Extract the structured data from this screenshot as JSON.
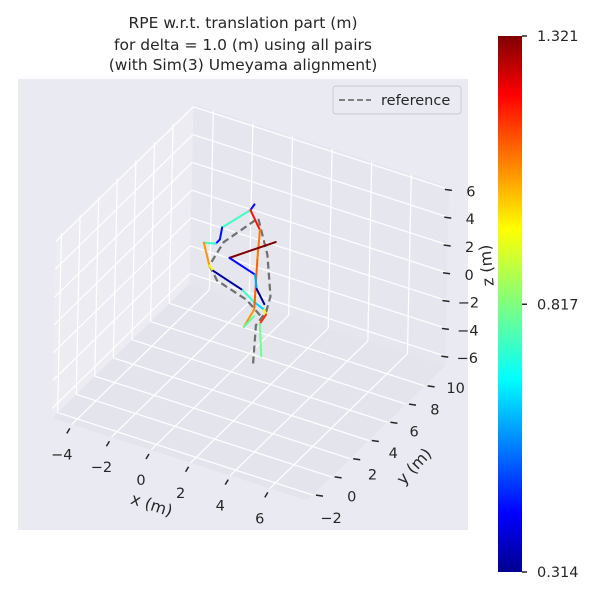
{
  "chart_data": {
    "type": "line3d",
    "title_lines": [
      "RPE w.r.t. translation part (m)",
      "for delta = 1.0 (m) using all pairs",
      "(with Sim(3) Umeyama alignment)"
    ],
    "xlabel": "x (m)",
    "ylabel": "y (m)",
    "zlabel": "z (m)",
    "xlim": [
      -5.0,
      7.9
    ],
    "ylim": [
      -2.6,
      12.2
    ],
    "zlim": [
      -6.7,
      6.2
    ],
    "xticks": [
      -4,
      -2,
      0,
      2,
      4,
      6
    ],
    "yticks": [
      -2,
      0,
      2,
      4,
      6,
      8,
      10
    ],
    "zticks": [
      -6,
      -4,
      -2,
      0,
      2,
      4,
      6
    ],
    "xtick_labels": [
      "−4",
      "−2",
      "0",
      "2",
      "4",
      "6"
    ],
    "ytick_labels": [
      "−2",
      "0",
      "2",
      "4",
      "6",
      "8",
      "10"
    ],
    "ztick_labels": [
      "−6",
      "−4",
      "−2",
      "0",
      "2",
      "4",
      "6"
    ],
    "grid": true,
    "legend": {
      "position": "top-right",
      "entries": [
        {
          "name": "reference",
          "style": "dashed",
          "color": "#808080"
        }
      ]
    },
    "reference": {
      "name": "reference",
      "color": "#707070",
      "points": [
        [
          1.1,
          6,
          -5.6
        ],
        [
          1.2,
          6,
          -2.8
        ],
        [
          1.7,
          6,
          -1.6
        ],
        [
          1.9,
          6,
          -0.4
        ],
        [
          1.7,
          6,
          2.5
        ],
        [
          1.2,
          6,
          4.9
        ],
        [
          -0.5,
          6,
          2.4
        ],
        [
          -1.2,
          6,
          0.4
        ],
        [
          -0.8,
          6,
          -0.5
        ],
        [
          0.7,
          6,
          -1.2
        ],
        [
          1.4,
          6,
          -2.0
        ]
      ]
    },
    "trajectory": [
      {
        "points": [
          [
            1.0,
            6,
            5.8
          ],
          [
            0.8,
            6,
            5.3
          ],
          [
            -0.6,
            6,
            3.4
          ],
          [
            -0.7,
            6,
            2.5
          ],
          [
            -0.9,
            6,
            2.1
          ],
          [
            -1.5,
            6,
            1.9
          ],
          [
            -1.2,
            6,
            0.4
          ],
          [
            -1.0,
            6,
            0.1
          ],
          [
            0.5,
            6,
            -0.6
          ],
          [
            1.1,
            6,
            -1.2
          ],
          [
            1.6,
            6,
            -1.5
          ],
          [
            1.7,
            6,
            -1.8
          ],
          [
            1.4,
            6,
            -2.6
          ],
          [
            1.5,
            6,
            -4.9
          ]
        ],
        "errors": [
          0.45,
          0.75,
          0.45,
          0.45,
          0.75,
          1.05,
          0.95,
          0.35,
          0.75,
          0.65,
          0.95,
          1.15,
          0.8
        ]
      },
      {
        "points": [
          [
            0.8,
            6,
            5.3
          ],
          [
            1.3,
            6,
            4.1
          ],
          [
            1.2,
            6,
            1.9
          ],
          [
            1.1,
            6,
            -1.7
          ],
          [
            0.6,
            6,
            -3.2
          ],
          [
            1.1,
            6,
            -2.2
          ]
        ],
        "errors": [
          1.18,
          1.08,
          1.1,
          1.05,
          0.78
        ]
      },
      {
        "points": [
          [
            2.1,
            6,
            3.6
          ],
          [
            -0.2,
            6,
            1.4
          ],
          [
            1.1,
            6,
            0.8
          ],
          [
            1.2,
            6,
            -0.2
          ],
          [
            1.6,
            6,
            -1.1
          ]
        ],
        "errors": [
          1.32,
          0.45,
          0.6,
          0.33
        ]
      }
    ],
    "colorbar": {
      "colormap": "jet",
      "min": 0.314,
      "max": 1.321,
      "tick_values": [
        1.321,
        0.817,
        0.314
      ],
      "tick_labels": [
        "1.321",
        "0.817",
        "0.314"
      ]
    },
    "colors": {
      "axes_background": "#eaeaf2",
      "pane": "#e5e5ed",
      "grid": "#ffffff"
    }
  }
}
